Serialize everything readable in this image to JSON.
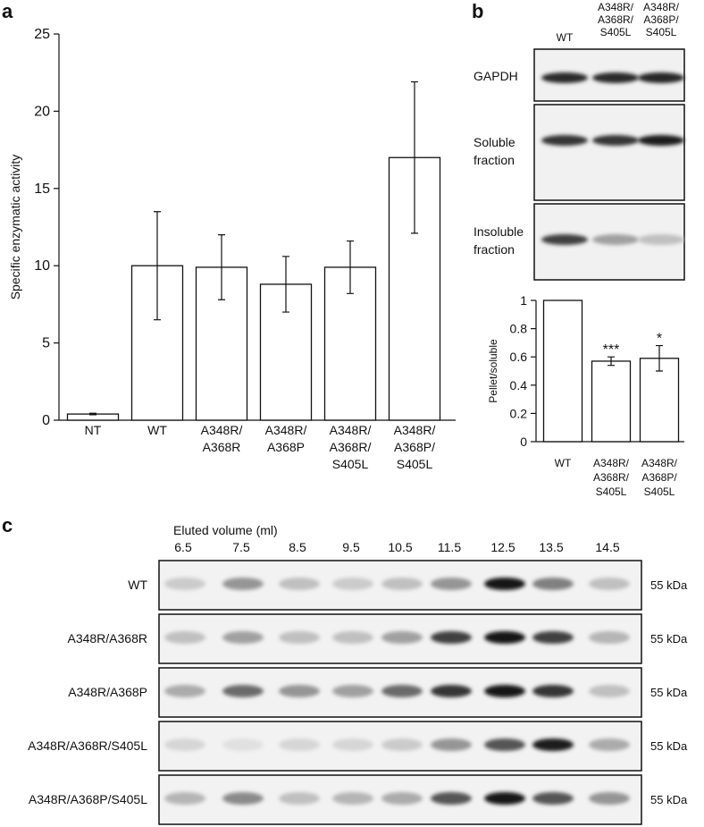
{
  "panel_labels": [
    "a",
    "b",
    "c"
  ],
  "chart_data": [
    {
      "type": "bar",
      "ylabel": "Specific enzymatic activity",
      "categories": [
        "NT",
        "WT",
        "A348R/\nA368R",
        "A348R/\nA368P",
        "A348R/\nA368R/\nS405L",
        "A348R/\nA368P/\nS405L"
      ],
      "values": [
        0.4,
        10.0,
        9.9,
        8.8,
        9.9,
        17.0
      ],
      "errors": [
        0.05,
        3.5,
        2.1,
        1.8,
        1.7,
        4.9
      ],
      "color": "#ffffff",
      "ylim": [
        0,
        25
      ],
      "yticks": [
        0,
        5,
        10,
        15,
        20,
        25
      ]
    },
    {
      "type": "bar",
      "ylabel": "Pellet/soluble",
      "categories": [
        "WT",
        "A348R/\nA368R/\nS405L",
        "A348R/\nA368P/\nS405L"
      ],
      "values": [
        1.0,
        0.57,
        0.59
      ],
      "errors": [
        null,
        0.03,
        0.09
      ],
      "significance": [
        null,
        "***",
        "*"
      ],
      "color": "#ffffff",
      "ylim": [
        0,
        1
      ],
      "yticks": [
        0,
        0.2,
        0.4,
        0.6,
        0.8,
        1
      ]
    }
  ],
  "blot_b": {
    "lanes": [
      "WT",
      "A348R/\nA368R/\nS405L",
      "A348R/\nA368P/\nS405L"
    ],
    "rows": [
      "GAPDH",
      "Soluble\nfraction",
      "Insoluble\nfraction"
    ]
  },
  "blot_c": {
    "axis_label": "Eluted volume (ml)",
    "fractions": [
      6.5,
      7.5,
      8.5,
      9.5,
      10.5,
      11.5,
      12.5,
      13.5,
      14.5
    ],
    "rows": [
      "WT",
      "A348R/A368R",
      "A348R/A368P",
      "A348R/A368R/S405L",
      "A348R/A368P/S405L"
    ],
    "marker": "55 kDa"
  }
}
